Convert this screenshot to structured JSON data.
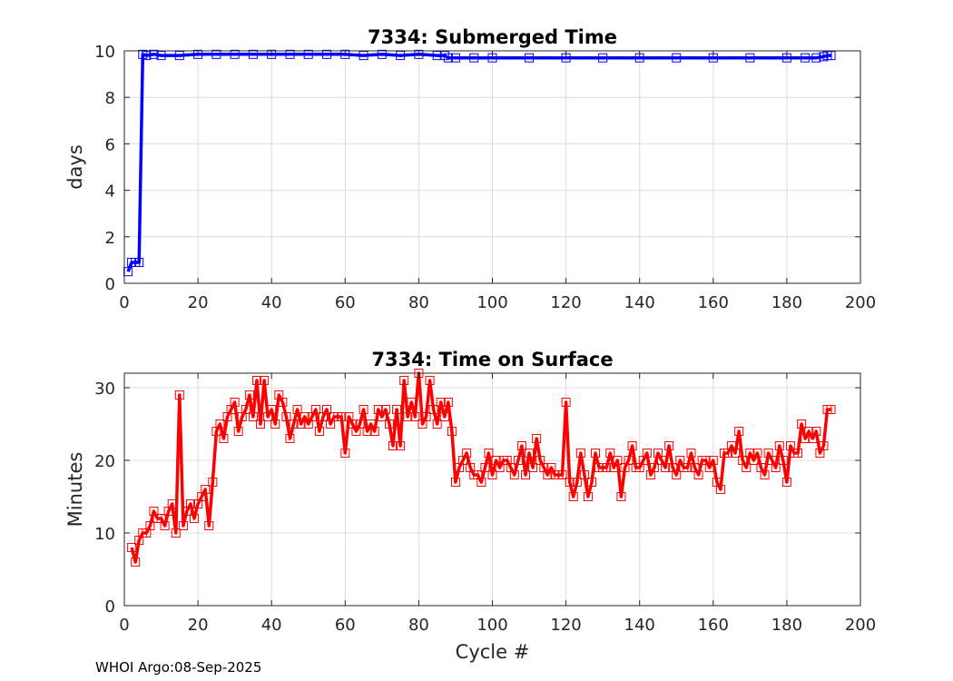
{
  "footer": "WHOI Argo:08-Sep-2025",
  "chart_data": [
    {
      "type": "line",
      "title": "7334: Submerged Time",
      "xlabel": "",
      "ylabel": "days",
      "xlim": [
        0,
        200
      ],
      "ylim": [
        0,
        10
      ],
      "xticks": [
        0,
        20,
        40,
        60,
        80,
        100,
        120,
        140,
        160,
        180,
        200
      ],
      "yticks": [
        0,
        2,
        4,
        6,
        8,
        10
      ],
      "grid": true,
      "marker": "square",
      "color": "#0000ff",
      "x": [
        1,
        2,
        3,
        4,
        5,
        6,
        8,
        10,
        15,
        20,
        25,
        30,
        35,
        40,
        45,
        50,
        55,
        60,
        65,
        70,
        75,
        80,
        85,
        87,
        88,
        90,
        95,
        100,
        110,
        120,
        130,
        140,
        150,
        160,
        170,
        180,
        185,
        188,
        190,
        191,
        192
      ],
      "y": [
        0.5,
        0.9,
        0.9,
        0.9,
        9.85,
        9.8,
        9.85,
        9.8,
        9.8,
        9.85,
        9.85,
        9.85,
        9.85,
        9.85,
        9.85,
        9.85,
        9.85,
        9.85,
        9.8,
        9.85,
        9.8,
        9.85,
        9.8,
        9.8,
        9.7,
        9.7,
        9.7,
        9.7,
        9.7,
        9.7,
        9.7,
        9.7,
        9.7,
        9.7,
        9.7,
        9.7,
        9.7,
        9.7,
        9.75,
        9.8,
        9.8
      ]
    },
    {
      "type": "line",
      "title": "7334: Time on Surface",
      "xlabel": "Cycle #",
      "ylabel": "Minutes",
      "xlim": [
        0,
        200
      ],
      "ylim": [
        0,
        32
      ],
      "xticks": [
        0,
        20,
        40,
        60,
        80,
        100,
        120,
        140,
        160,
        180,
        200
      ],
      "yticks": [
        0,
        10,
        20,
        30
      ],
      "grid": true,
      "marker": "square",
      "color": "#ff0000",
      "x": [
        2,
        3,
        4,
        5,
        6,
        7,
        8,
        9,
        10,
        11,
        12,
        13,
        14,
        15,
        16,
        17,
        18,
        19,
        20,
        21,
        22,
        23,
        24,
        25,
        26,
        27,
        28,
        29,
        30,
        31,
        32,
        33,
        34,
        35,
        36,
        37,
        38,
        39,
        40,
        41,
        42,
        43,
        44,
        45,
        46,
        47,
        48,
        49,
        50,
        51,
        52,
        53,
        54,
        55,
        56,
        57,
        58,
        59,
        60,
        61,
        62,
        63,
        64,
        65,
        66,
        67,
        68,
        69,
        70,
        71,
        72,
        73,
        74,
        75,
        76,
        77,
        78,
        79,
        80,
        81,
        82,
        83,
        84,
        85,
        86,
        87,
        88,
        89,
        90,
        91,
        92,
        93,
        94,
        95,
        96,
        97,
        98,
        99,
        100,
        101,
        102,
        103,
        104,
        105,
        106,
        107,
        108,
        109,
        110,
        111,
        112,
        113,
        114,
        115,
        116,
        117,
        118,
        119,
        120,
        121,
        122,
        123,
        124,
        125,
        126,
        127,
        128,
        129,
        130,
        131,
        132,
        133,
        134,
        135,
        136,
        137,
        138,
        139,
        140,
        141,
        142,
        143,
        144,
        145,
        146,
        147,
        148,
        149,
        150,
        151,
        152,
        153,
        154,
        155,
        156,
        157,
        158,
        159,
        160,
        161,
        162,
        163,
        164,
        165,
        166,
        167,
        168,
        169,
        170,
        171,
        172,
        173,
        174,
        175,
        176,
        177,
        178,
        179,
        180,
        181,
        182,
        183,
        184,
        185,
        186,
        187,
        188,
        189,
        190,
        191,
        192
      ],
      "y": [
        8,
        6,
        9,
        10,
        10,
        11,
        13,
        12,
        12,
        11,
        13,
        14,
        10,
        29,
        11,
        13,
        14,
        12,
        14,
        15,
        16,
        11,
        17,
        24,
        25,
        23,
        26,
        27,
        28,
        24,
        26,
        27,
        29,
        26,
        31,
        25,
        31,
        26,
        27,
        25,
        29,
        28,
        26,
        23,
        25,
        27,
        25,
        26,
        25,
        26,
        27,
        24,
        26,
        27,
        25,
        26,
        26,
        26,
        21,
        26,
        25,
        24,
        25,
        27,
        24,
        25,
        24,
        27,
        26,
        27,
        25,
        22,
        27,
        22,
        31,
        26,
        28,
        26,
        32,
        25,
        26,
        31,
        27,
        25,
        28,
        26,
        28,
        24,
        17,
        19,
        20,
        21,
        19,
        18,
        18,
        17,
        19,
        21,
        18,
        20,
        19,
        20,
        20,
        19,
        18,
        20,
        22,
        18,
        21,
        19,
        23,
        20,
        19,
        18,
        19,
        18,
        18,
        18,
        28,
        17,
        15,
        17,
        21,
        18,
        15,
        17,
        21,
        19,
        19,
        19,
        21,
        19,
        20,
        15,
        19,
        20,
        22,
        19,
        19,
        20,
        21,
        18,
        19,
        21,
        20,
        19,
        22,
        19,
        18,
        20,
        19,
        19,
        21,
        19,
        18,
        20,
        20,
        19,
        20,
        17,
        16,
        21,
        21,
        22,
        21,
        24,
        20,
        19,
        21,
        20,
        21,
        19,
        18,
        21,
        20,
        19,
        22,
        20,
        17,
        22,
        21,
        21,
        25,
        23,
        24,
        23,
        24,
        21,
        22,
        27,
        27
      ]
    }
  ]
}
